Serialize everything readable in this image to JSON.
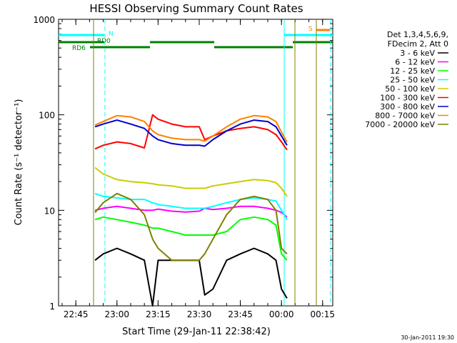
{
  "chart_data": {
    "type": "line",
    "title": "HESSI Observing Summary Count Rates",
    "xlabel": "Start Time (29-Jan-11 22:38:42)",
    "ylabel": "Count Rate (s⁻¹ detector⁻¹)",
    "y_scale": "log",
    "ylim": [
      1,
      1000
    ],
    "xlim": [
      "22:38:42",
      "00:18:42"
    ],
    "x_ticks": [
      "22:45",
      "23:00",
      "23:15",
      "23:30",
      "23:45",
      "00:00",
      "00:15"
    ],
    "y_ticks": [
      "1",
      "10",
      "100",
      "1000"
    ],
    "timestamp": "30-Jan-2011 19:30",
    "legend": {
      "placement": "right",
      "header": [
        "Det 1,3,4,5,6,9,",
        "FDecim 2, Att 0"
      ]
    },
    "flags": [
      {
        "label": "RD0",
        "color": "#00ffff"
      },
      {
        "label": "N",
        "color": "#00ffff"
      },
      {
        "label": "RD6",
        "color": "#008000"
      },
      {
        "label": "S",
        "color": "#ff8000"
      }
    ],
    "series": [
      {
        "name": "3 - 6 keV",
        "color": "#000000",
        "x": [
          "22:52",
          "22:55",
          "23:00",
          "23:05",
          "23:10",
          "23:13",
          "23:15",
          "23:20",
          "23:25",
          "23:30",
          "23:32",
          "23:35",
          "23:40",
          "23:45",
          "23:50",
          "23:55",
          "23:58",
          "00:00",
          "00:02"
        ],
        "values": [
          3.0,
          3.5,
          4.0,
          3.5,
          3.0,
          1.0,
          3.0,
          3.0,
          3.0,
          3.0,
          1.3,
          1.5,
          3.0,
          3.5,
          4.0,
          3.5,
          3.0,
          1.5,
          1.2
        ]
      },
      {
        "name": "6 - 12 keV",
        "color": "#ff00ff",
        "x": [
          "22:52",
          "22:55",
          "23:00",
          "23:05",
          "23:10",
          "23:13",
          "23:15",
          "23:20",
          "23:25",
          "23:30",
          "23:32",
          "23:35",
          "23:40",
          "23:45",
          "23:50",
          "23:55",
          "23:58",
          "00:00",
          "00:02"
        ],
        "values": [
          10,
          10.5,
          11,
          10.5,
          10,
          10,
          10.3,
          9.8,
          9.6,
          9.8,
          10.5,
          10.2,
          10.5,
          11,
          11,
          10.5,
          10,
          9.5,
          8.5
        ]
      },
      {
        "name": "12 - 25 keV",
        "color": "#00ff00",
        "x": [
          "22:52",
          "22:55",
          "23:00",
          "23:05",
          "23:10",
          "23:13",
          "23:15",
          "23:20",
          "23:25",
          "23:30",
          "23:32",
          "23:35",
          "23:40",
          "23:45",
          "23:50",
          "23:55",
          "23:58",
          "00:00",
          "00:02"
        ],
        "values": [
          8.0,
          8.5,
          8.0,
          7.5,
          7.0,
          6.5,
          6.5,
          6.0,
          5.5,
          5.5,
          5.5,
          5.5,
          6.0,
          8.0,
          8.5,
          8.0,
          7.0,
          3.5,
          3.0
        ]
      },
      {
        "name": "25 - 50 keV",
        "color": "#00ffff",
        "x": [
          "22:52",
          "22:55",
          "23:00",
          "23:05",
          "23:10",
          "23:13",
          "23:15",
          "23:20",
          "23:25",
          "23:30",
          "23:32",
          "23:35",
          "23:40",
          "23:45",
          "23:50",
          "23:55",
          "23:58",
          "00:00",
          "00:02"
        ],
        "values": [
          15,
          14,
          13.5,
          13,
          13,
          12,
          11.5,
          11,
          10.5,
          10.5,
          10.5,
          11,
          12,
          13,
          13.5,
          13,
          12.5,
          10,
          8
        ]
      },
      {
        "name": "50 - 100 keV",
        "color": "#cccc00",
        "x": [
          "22:52",
          "22:55",
          "23:00",
          "23:05",
          "23:10",
          "23:13",
          "23:15",
          "23:20",
          "23:25",
          "23:30",
          "23:32",
          "23:35",
          "23:40",
          "23:45",
          "23:50",
          "23:55",
          "23:58",
          "00:00",
          "00:02"
        ],
        "values": [
          28,
          24,
          21,
          20,
          19.5,
          19,
          18.5,
          18,
          17,
          17,
          17,
          18,
          19,
          20,
          21,
          20.5,
          19.5,
          17,
          14
        ]
      },
      {
        "name": "100 - 300 keV",
        "color": "#ff0000",
        "x": [
          "22:52",
          "22:55",
          "23:00",
          "23:05",
          "23:10",
          "23:13",
          "23:15",
          "23:20",
          "23:25",
          "23:30",
          "23:32",
          "23:35",
          "23:40",
          "23:45",
          "23:50",
          "23:55",
          "23:58",
          "00:00",
          "00:02"
        ],
        "values": [
          44,
          48,
          52,
          50,
          45,
          100,
          90,
          80,
          75,
          75,
          55,
          60,
          68,
          72,
          75,
          70,
          62,
          52,
          43
        ]
      },
      {
        "name": "300 - 800 keV",
        "color": "#0000cc",
        "x": [
          "22:52",
          "22:55",
          "23:00",
          "23:05",
          "23:10",
          "23:13",
          "23:15",
          "23:20",
          "23:25",
          "23:30",
          "23:32",
          "23:35",
          "23:40",
          "23:45",
          "23:50",
          "23:55",
          "23:58",
          "00:00",
          "00:02"
        ],
        "values": [
          75,
          80,
          88,
          80,
          72,
          60,
          55,
          50,
          48,
          48,
          47,
          55,
          68,
          80,
          88,
          85,
          75,
          60,
          48
        ]
      },
      {
        "name": "800 - 7000 keV",
        "color": "#ff8000",
        "x": [
          "22:52",
          "22:55",
          "23:00",
          "23:05",
          "23:10",
          "23:13",
          "23:15",
          "23:20",
          "23:25",
          "23:30",
          "23:32",
          "23:35",
          "23:40",
          "23:45",
          "23:50",
          "23:55",
          "23:58",
          "00:00",
          "00:02"
        ],
        "values": [
          78,
          85,
          98,
          95,
          85,
          68,
          62,
          57,
          55,
          55,
          53,
          60,
          75,
          90,
          98,
          95,
          85,
          66,
          52
        ]
      },
      {
        "name": "7000 - 20000 keV",
        "color": "#808000",
        "x": [
          "22:52",
          "22:55",
          "23:00",
          "23:05",
          "23:10",
          "23:13",
          "23:15",
          "23:20",
          "23:25",
          "23:30",
          "23:32",
          "23:35",
          "23:40",
          "23:45",
          "23:50",
          "23:55",
          "23:58",
          "00:00",
          "00:02"
        ],
        "values": [
          9.5,
          12,
          15,
          13,
          9,
          5,
          4,
          3,
          3,
          3,
          3.5,
          5,
          9,
          13,
          14,
          13,
          10,
          4,
          3.5
        ]
      }
    ]
  }
}
